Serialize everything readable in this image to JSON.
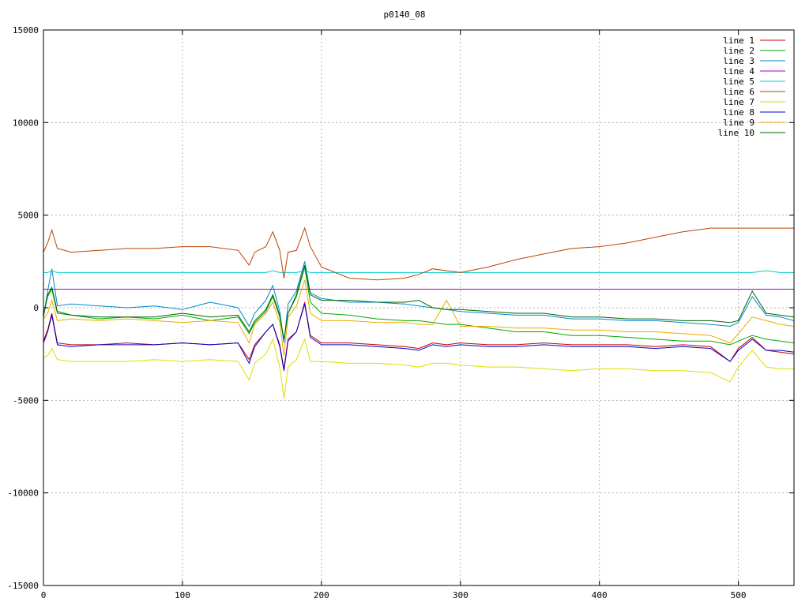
{
  "chart_data": {
    "type": "line",
    "title": "p0140_08",
    "xlabel": "",
    "ylabel": "",
    "xlim": [
      0,
      540
    ],
    "ylim": [
      -15000,
      15000
    ],
    "x_ticks": [
      0,
      100,
      200,
      300,
      400,
      500
    ],
    "y_ticks": [
      -15000,
      -10000,
      -5000,
      0,
      5000,
      10000,
      15000
    ],
    "grid": true,
    "legend_position": "top-right",
    "x": [
      0,
      3,
      6,
      10,
      20,
      40,
      60,
      80,
      100,
      120,
      140,
      148,
      152,
      160,
      165,
      170,
      173,
      176,
      182,
      188,
      192,
      200,
      220,
      240,
      260,
      270,
      280,
      290,
      300,
      320,
      340,
      360,
      380,
      400,
      420,
      440,
      460,
      480,
      494,
      500,
      510,
      520,
      530,
      540
    ],
    "series": [
      {
        "name": "line 1",
        "color": "#cc0000",
        "values": [
          -1800,
          -1200,
          -300,
          -1900,
          -2000,
          -2000,
          -1900,
          -2000,
          -1900,
          -2000,
          -1900,
          -2800,
          -2000,
          -1300,
          -900,
          -2000,
          -3300,
          -1700,
          -1300,
          300,
          -1500,
          -1900,
          -1900,
          -2000,
          -2100,
          -2200,
          -1900,
          -2000,
          -1900,
          -2000,
          -2000,
          -1900,
          -2000,
          -2000,
          -2000,
          -2100,
          -2000,
          -2100,
          -2900,
          -2200,
          -1600,
          -2300,
          -2400,
          -2500
        ]
      },
      {
        "name": "line 2",
        "color": "#00aa00",
        "values": [
          -400,
          600,
          1000,
          -300,
          -400,
          -600,
          -500,
          -600,
          -400,
          -700,
          -500,
          -1400,
          -800,
          -200,
          600,
          -500,
          -1800,
          -300,
          600,
          2200,
          300,
          -300,
          -400,
          -600,
          -700,
          -700,
          -800,
          -900,
          -900,
          -1100,
          -1300,
          -1300,
          -1500,
          -1500,
          -1600,
          -1700,
          -1800,
          -1800,
          -2000,
          -1800,
          -1500,
          -1700,
          -1800,
          -1900
        ]
      },
      {
        "name": "line 3",
        "color": "#0088cc",
        "values": [
          -500,
          900,
          2100,
          100,
          200,
          100,
          0,
          100,
          -100,
          300,
          0,
          -1000,
          -300,
          400,
          1200,
          -200,
          -1900,
          200,
          900,
          2500,
          800,
          500,
          300,
          300,
          200,
          100,
          0,
          -100,
          -200,
          -300,
          -400,
          -400,
          -600,
          -600,
          -700,
          -700,
          -800,
          -900,
          -1000,
          -800,
          600,
          -400,
          -500,
          -700
        ]
      },
      {
        "name": "line 4",
        "color": "#aa00cc",
        "values": [
          1000,
          1000,
          1000,
          1000,
          1000,
          1000,
          1000,
          1000,
          1000,
          1000,
          1000,
          1000,
          1000,
          1000,
          1000,
          1000,
          1000,
          1000,
          1000,
          1000,
          1000,
          1000,
          1000,
          1000,
          1000,
          1000,
          1000,
          1000,
          1000,
          1000,
          1000,
          1000,
          1000,
          1000,
          1000,
          1000,
          1000,
          1000,
          1000,
          1000,
          1000,
          1000,
          1000,
          1000
        ]
      },
      {
        "name": "line 5",
        "color": "#00cccc",
        "values": [
          1900,
          1900,
          2000,
          1900,
          1900,
          1900,
          1900,
          1900,
          1900,
          1900,
          1900,
          1900,
          1900,
          1900,
          2000,
          1900,
          1900,
          1900,
          1900,
          2000,
          1900,
          1900,
          1900,
          1900,
          1900,
          1900,
          1900,
          1900,
          1900,
          1900,
          1900,
          1900,
          1900,
          1900,
          1900,
          1900,
          1900,
          1900,
          1900,
          1900,
          1900,
          2000,
          1900,
          1900
        ]
      },
      {
        "name": "line 6",
        "color": "#bb4400",
        "values": [
          3000,
          3500,
          4200,
          3200,
          3000,
          3100,
          3200,
          3200,
          3300,
          3300,
          3100,
          2300,
          3000,
          3300,
          4100,
          3100,
          1600,
          3000,
          3100,
          4300,
          3300,
          2200,
          1600,
          1500,
          1600,
          1800,
          2100,
          2000,
          1900,
          2200,
          2600,
          2900,
          3200,
          3300,
          3500,
          3800,
          4100,
          4300,
          4300,
          4300,
          4300,
          4300,
          4300,
          4300
        ]
      },
      {
        "name": "line 7",
        "color": "#dddd00",
        "values": [
          -2700,
          -2600,
          -2200,
          -2800,
          -2900,
          -2900,
          -2900,
          -2800,
          -2900,
          -2800,
          -2900,
          -3900,
          -3000,
          -2500,
          -1700,
          -3200,
          -4900,
          -3200,
          -2800,
          -1700,
          -2900,
          -2900,
          -3000,
          -3000,
          -3100,
          -3200,
          -3000,
          -3000,
          -3100,
          -3200,
          -3200,
          -3300,
          -3400,
          -3300,
          -3300,
          -3400,
          -3400,
          -3500,
          -4000,
          -3200,
          -2300,
          -3200,
          -3300,
          -3300
        ]
      },
      {
        "name": "line 8",
        "color": "#0000cc",
        "values": [
          -1900,
          -1300,
          -400,
          -2000,
          -2100,
          -2000,
          -2000,
          -2000,
          -1900,
          -2000,
          -1900,
          -3000,
          -2100,
          -1300,
          -900,
          -2100,
          -3400,
          -1800,
          -1300,
          200,
          -1600,
          -2000,
          -2000,
          -2100,
          -2200,
          -2300,
          -2000,
          -2100,
          -2000,
          -2100,
          -2100,
          -2000,
          -2100,
          -2100,
          -2100,
          -2200,
          -2100,
          -2200,
          -2900,
          -2300,
          -1700,
          -2300,
          -2300,
          -2400
        ]
      },
      {
        "name": "line 9",
        "color": "#eeaa00",
        "values": [
          -600,
          -300,
          400,
          -700,
          -600,
          -700,
          -600,
          -700,
          -800,
          -700,
          -800,
          -1900,
          -900,
          -300,
          300,
          -800,
          -2600,
          -500,
          100,
          1500,
          -300,
          -700,
          -700,
          -800,
          -800,
          -900,
          -900,
          400,
          -1000,
          -1000,
          -1100,
          -1100,
          -1200,
          -1200,
          -1300,
          -1300,
          -1400,
          -1500,
          -1900,
          -1400,
          -500,
          -700,
          -900,
          -1000
        ]
      },
      {
        "name": "line 10",
        "color": "#006600",
        "values": [
          -500,
          700,
          1100,
          -200,
          -400,
          -500,
          -500,
          -500,
          -300,
          -500,
          -400,
          -1300,
          -700,
          -100,
          700,
          -400,
          -1700,
          -300,
          700,
          2300,
          700,
          400,
          400,
          300,
          300,
          400,
          0,
          -100,
          -100,
          -200,
          -300,
          -300,
          -500,
          -500,
          -600,
          -600,
          -700,
          -700,
          -800,
          -700,
          900,
          -300,
          -400,
          -500
        ]
      }
    ]
  }
}
